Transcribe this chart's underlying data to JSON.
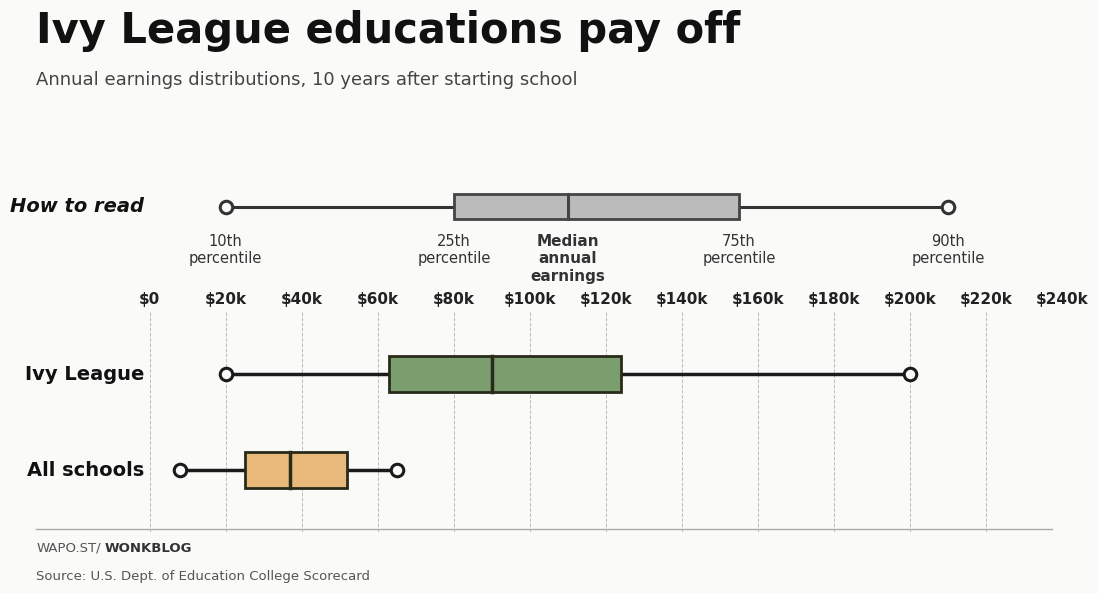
{
  "title": "Ivy League educations pay off",
  "subtitle": "Annual earnings distributions, 10 years after starting school",
  "footer_left_normal": "WAPO.ST/",
  "footer_left_bold": "WONKBLOG",
  "footer_source": "Source: U.S. Dept. of Education College Scorecard",
  "background_color": "#fafaf8",
  "x_min": 0,
  "x_max": 240000,
  "x_ticks": [
    0,
    20000,
    40000,
    60000,
    80000,
    100000,
    120000,
    140000,
    160000,
    180000,
    200000,
    220000,
    240000
  ],
  "x_tick_labels": [
    "$0",
    "$20k",
    "$40k",
    "$60k",
    "$80k",
    "$100k",
    "$120k",
    "$140k",
    "$160k",
    "$180k",
    "$200k",
    "$220k",
    "$240k"
  ],
  "series": [
    {
      "name": "Ivy League",
      "p10": 20000,
      "p25": 63000,
      "median": 90000,
      "p75": 124000,
      "p90": 200000,
      "box_color": "#7a9e6e",
      "box_edge_color": "#2a2a1a",
      "line_color": "#1a1a1a",
      "y": 1.0
    },
    {
      "name": "All schools",
      "p10": 8000,
      "p25": 25000,
      "median": 37000,
      "p75": 52000,
      "p90": 65000,
      "box_color": "#e8b97a",
      "box_edge_color": "#2a2a1a",
      "line_color": "#1a1a1a",
      "y": 0.0
    }
  ],
  "howtoread_data": {
    "p10": 20000,
    "p25": 80000,
    "median": 110000,
    "p75": 155000,
    "p90": 210000,
    "box_color": "#bbbbbb",
    "box_edge_color": "#444444"
  },
  "howtoread_labels": {
    "p10_text": "10th\npercentile",
    "p25_text": "25th\npercentile",
    "median_text": "Median\nannual\nearnings",
    "p75_text": "75th\npercentile",
    "p90_text": "90th\npercentile"
  },
  "title_fontsize": 30,
  "subtitle_fontsize": 13,
  "label_fontsize": 14,
  "tick_fontsize": 11,
  "howtoread_label_fontsize": 10.5
}
